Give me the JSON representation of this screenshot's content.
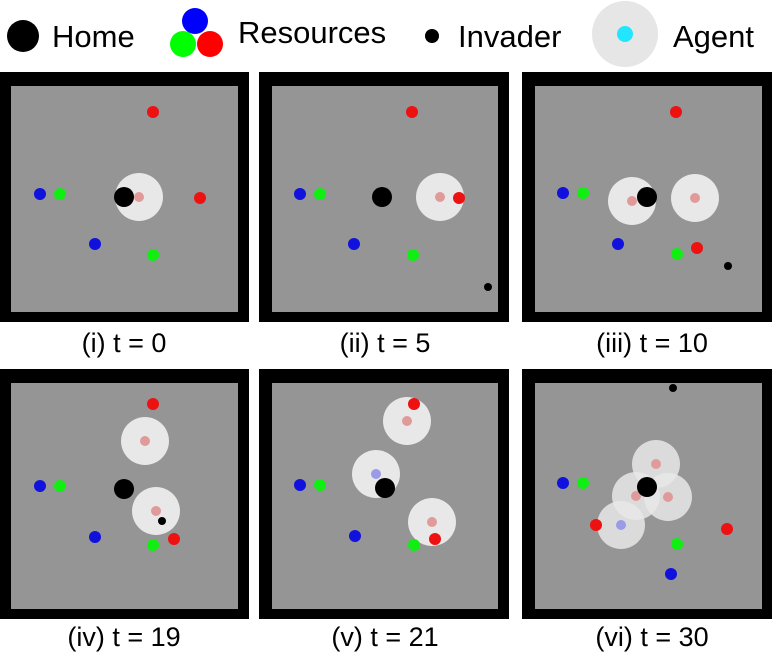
{
  "legend": [
    {
      "label": "Home",
      "icon": "home-icon",
      "color": "#000000"
    },
    {
      "label": "Resources",
      "icon": "resources-icon",
      "colors": [
        "#0000ff",
        "#00ff00",
        "#ff0000"
      ]
    },
    {
      "label": "Invader",
      "icon": "invader-icon",
      "color": "#000000"
    },
    {
      "label": "Agent",
      "icon": "agent-icon",
      "color": "#22e5ff",
      "halo": "#e6e6e6"
    }
  ],
  "colors": {
    "frame": "#000000",
    "field": "#959595",
    "red": "#ee1111",
    "green": "#11ee11",
    "blue": "#1111dd",
    "agent_dot_on_red": "#e09a9a",
    "agent_dot_on_blue": "#9a9ae8",
    "agent_halo": "#e8e8e8"
  },
  "panels": [
    {
      "caption": "(i) t = 0"
    },
    {
      "caption": "(ii) t = 5"
    },
    {
      "caption": "(iii) t = 10"
    },
    {
      "caption": "(iv) t = 19"
    },
    {
      "caption": "(v) t = 21"
    },
    {
      "caption": "(vi) t = 30"
    }
  ]
}
